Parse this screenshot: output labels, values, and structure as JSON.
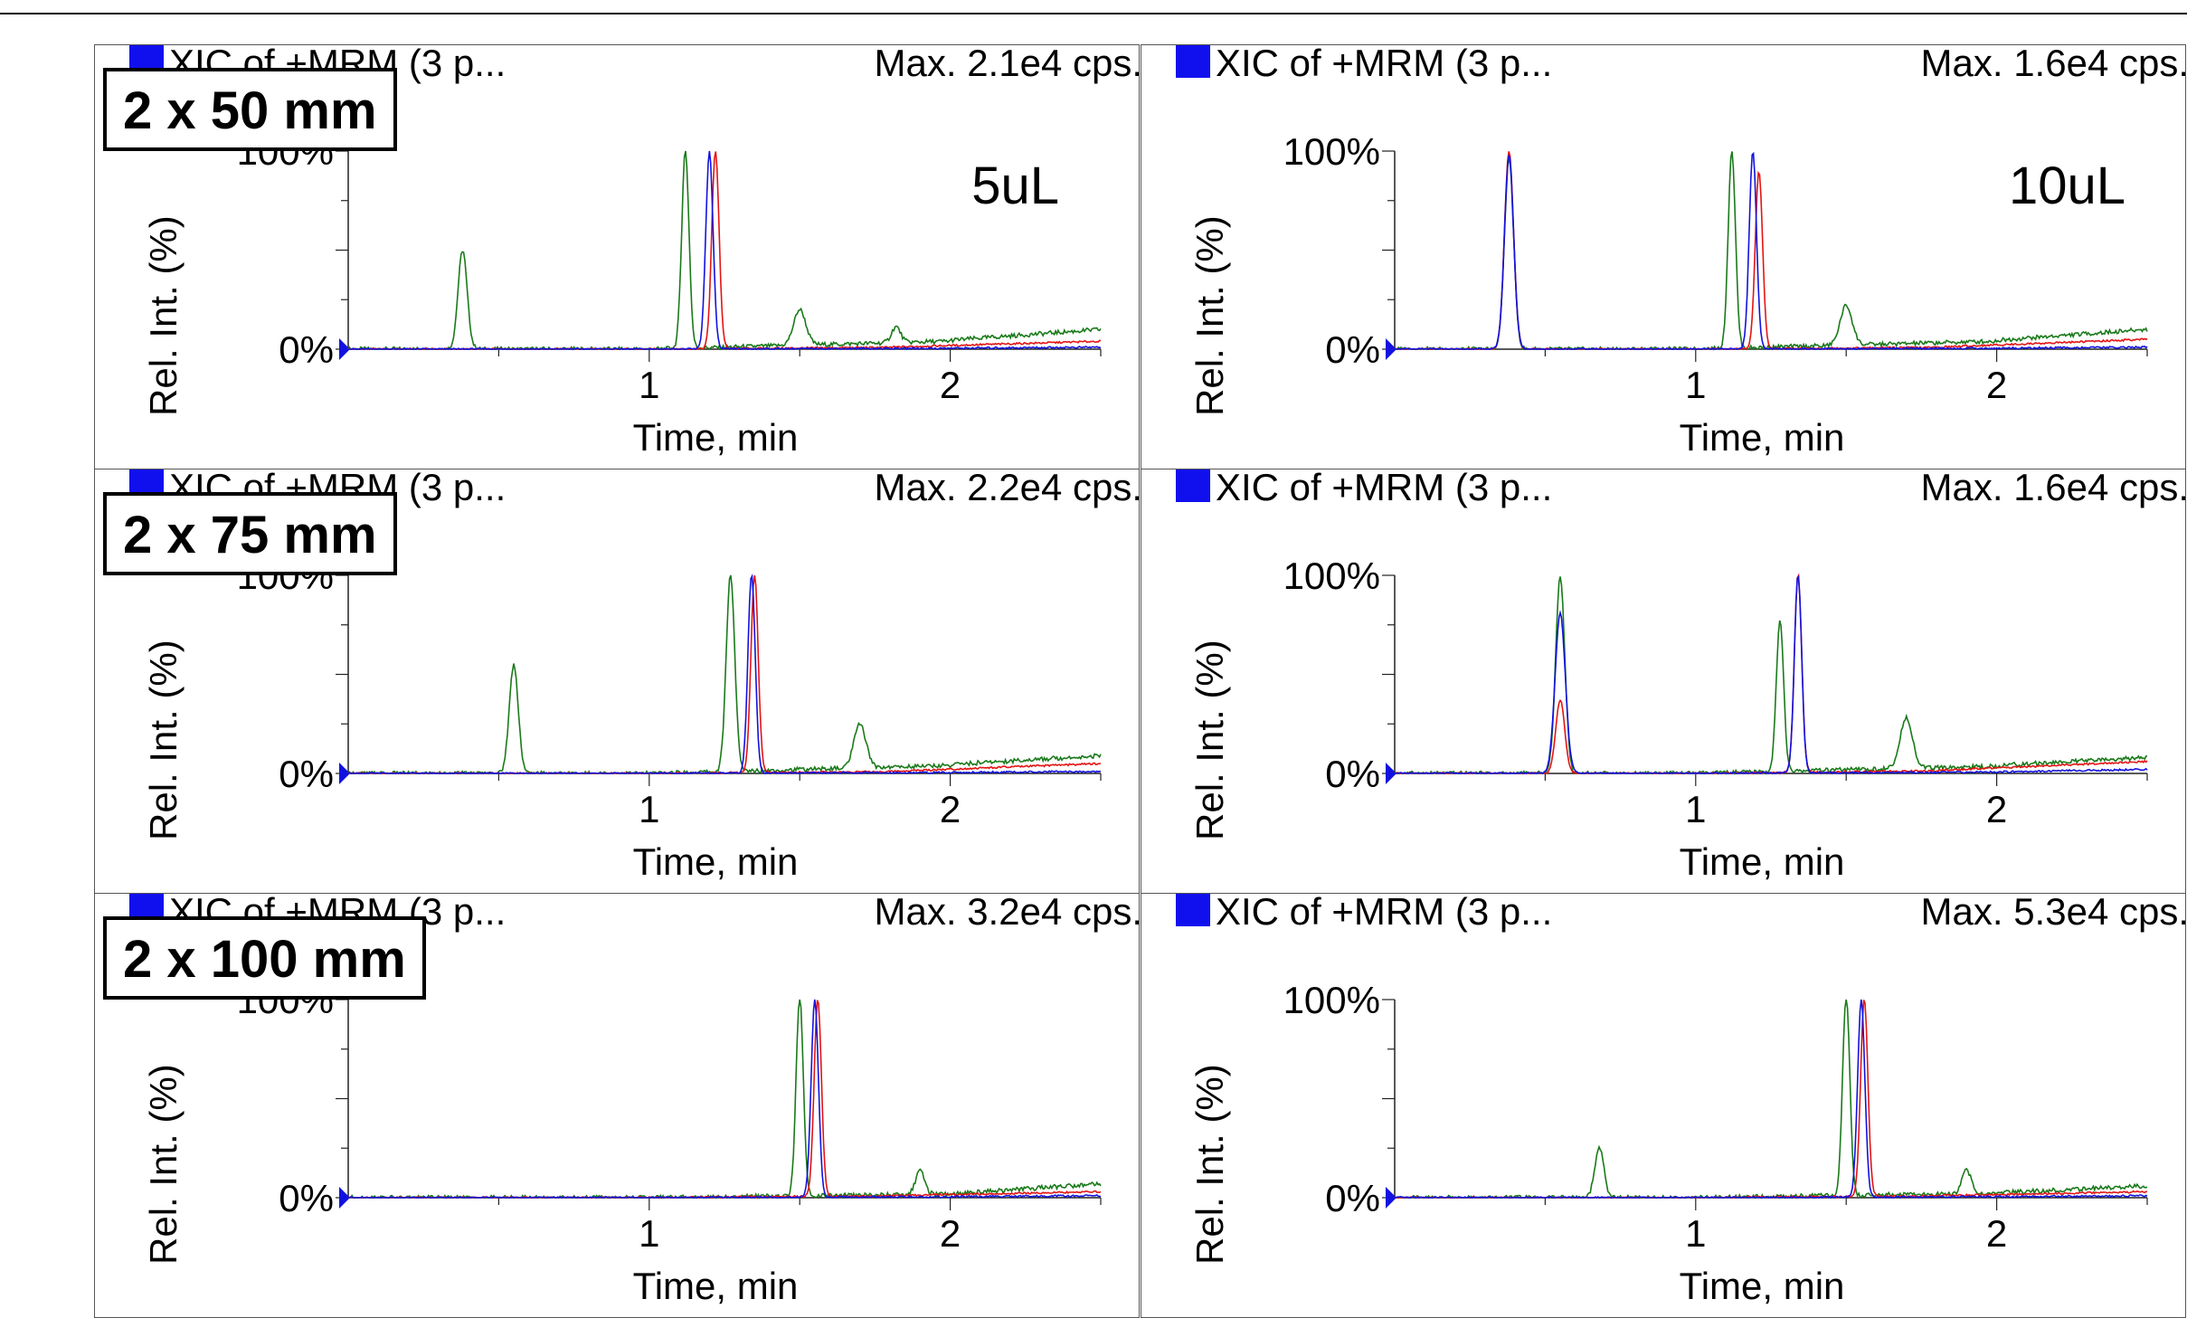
{
  "labels": {
    "col_title": "XIC of +MRM (3 p...",
    "y_axis_label": "Rel. Int. (%)",
    "pct_100": "100%",
    "pct_0": "0%",
    "x_axis_label": "Time, min"
  },
  "rows": [
    {
      "size_label": "2 x 50 mm"
    },
    {
      "size_label": "2 x 75 mm"
    },
    {
      "size_label": "2 x 100 mm"
    }
  ],
  "columns": [
    {
      "volume_label": "5uL"
    },
    {
      "volume_label": "10uL"
    }
  ],
  "colors": {
    "red": "#e51414",
    "blue": "#1212e0",
    "green": "#1a7a1a",
    "axis": "#222222",
    "frame": "#555555"
  },
  "chart_data": [
    {
      "type": "line",
      "row": 0,
      "col": 0,
      "title": "XIC of +MRM (3 p...",
      "max_label": "Max. 2.1e4 cps.",
      "volume": "5uL",
      "xlabel": "Time, min",
      "ylabel": "Rel. Int. (%)",
      "xlim": [
        0.0,
        2.5
      ],
      "ylim": [
        0,
        100
      ],
      "xticks": [
        1,
        2
      ],
      "peaks": {
        "green": [
          [
            0.38,
            50,
            0.015
          ],
          [
            1.12,
            100,
            0.012
          ],
          [
            1.5,
            18,
            0.02
          ],
          [
            1.82,
            8,
            0.015
          ]
        ],
        "blue": [
          [
            1.2,
            100,
            0.012
          ]
        ],
        "red": [
          [
            1.22,
            100,
            0.012
          ]
        ]
      },
      "tails": {
        "green": [
          0.0,
          2.0,
          4.5,
          10.0
        ],
        "red": [
          0.0,
          1.8,
          1.0,
          4.0
        ],
        "blue": [
          0.0,
          2.0,
          0.5,
          1.0
        ]
      }
    },
    {
      "type": "line",
      "row": 0,
      "col": 1,
      "title": "XIC of +MRM (3 p...",
      "max_label": "Max. 1.6e4 cps.",
      "volume": "10uL",
      "xlabel": "Time, min",
      "ylabel": "Rel. Int. (%)",
      "xlim": [
        0.0,
        2.5
      ],
      "ylim": [
        0,
        100
      ],
      "xticks": [
        1,
        2
      ],
      "peaks": {
        "green": [
          [
            0.38,
            96,
            0.015
          ],
          [
            1.12,
            100,
            0.012
          ],
          [
            1.5,
            20,
            0.02
          ]
        ],
        "blue": [
          [
            0.38,
            98,
            0.015
          ],
          [
            1.19,
            100,
            0.012
          ]
        ],
        "red": [
          [
            0.38,
            100,
            0.015
          ],
          [
            1.21,
            90,
            0.012
          ]
        ]
      },
      "tails": {
        "green": [
          0.0,
          2.0,
          4.5,
          10.0
        ],
        "red": [
          0.0,
          1.8,
          1.0,
          5.0
        ],
        "blue": [
          0.0,
          2.0,
          0.5,
          1.0
        ]
      }
    },
    {
      "type": "line",
      "row": 1,
      "col": 0,
      "title": "XIC of +MRM (3 p...",
      "max_label": "Max. 2.2e4 cps.",
      "volume": "",
      "xlabel": "Time, min",
      "ylabel": "Rel. Int. (%)",
      "xlim": [
        0.0,
        2.5
      ],
      "ylim": [
        0,
        100
      ],
      "xticks": [
        1,
        2
      ],
      "peaks": {
        "green": [
          [
            0.55,
            55,
            0.015
          ],
          [
            1.27,
            100,
            0.014
          ],
          [
            1.7,
            22,
            0.02
          ]
        ],
        "blue": [
          [
            1.34,
            100,
            0.012
          ]
        ],
        "red": [
          [
            1.35,
            100,
            0.012
          ]
        ]
      },
      "tails": {
        "green": [
          0.0,
          2.0,
          4.5,
          9.0
        ],
        "red": [
          0.0,
          1.8,
          1.0,
          5.0
        ],
        "blue": [
          0.0,
          2.0,
          0.5,
          1.0
        ]
      }
    },
    {
      "type": "line",
      "row": 1,
      "col": 1,
      "title": "XIC of +MRM (3 p...",
      "max_label": "Max. 1.6e4 cps.",
      "volume": "",
      "xlabel": "Time, min",
      "ylabel": "Rel. Int. (%)",
      "xlim": [
        0.0,
        2.5
      ],
      "ylim": [
        0,
        100
      ],
      "xticks": [
        1,
        2
      ],
      "peaks": {
        "green": [
          [
            0.55,
            100,
            0.015
          ],
          [
            1.28,
            76,
            0.012
          ],
          [
            1.7,
            26,
            0.02
          ]
        ],
        "blue": [
          [
            0.55,
            81,
            0.017
          ],
          [
            1.34,
            100,
            0.012
          ]
        ],
        "red": [
          [
            0.55,
            37,
            0.015
          ],
          [
            1.34,
            100,
            0.012
          ]
        ]
      },
      "tails": {
        "green": [
          0.0,
          2.0,
          4.0,
          8.0
        ],
        "red": [
          0.0,
          1.8,
          1.5,
          6.0
        ],
        "blue": [
          0.0,
          2.0,
          0.8,
          2.0
        ]
      }
    },
    {
      "type": "line",
      "row": 2,
      "col": 0,
      "title": "XIC of +MRM (3 p...",
      "max_label": "Max. 3.2e4 cps.",
      "volume": "",
      "xlabel": "Time, min",
      "ylabel": "Rel. Int. (%)",
      "xlim": [
        0.0,
        2.5
      ],
      "ylim": [
        0,
        100
      ],
      "xticks": [
        1,
        2
      ],
      "peaks": {
        "green": [
          [
            1.5,
            100,
            0.012
          ],
          [
            1.9,
            12,
            0.015
          ]
        ],
        "blue": [
          [
            1.55,
            100,
            0.012
          ]
        ],
        "red": [
          [
            1.56,
            100,
            0.012
          ]
        ]
      },
      "tails": {
        "green": [
          0.0,
          2.0,
          2.0,
          7.0
        ],
        "red": [
          0.0,
          1.8,
          1.0,
          3.0
        ],
        "blue": [
          0.0,
          2.0,
          0.5,
          1.0
        ]
      }
    },
    {
      "type": "line",
      "row": 2,
      "col": 1,
      "title": "XIC of +MRM (3 p...",
      "max_label": "Max. 5.3e4 cps.",
      "volume": "",
      "xlabel": "Time, min",
      "ylabel": "Rel. Int. (%)",
      "xlim": [
        0.0,
        2.5
      ],
      "ylim": [
        0,
        100
      ],
      "xticks": [
        1,
        2
      ],
      "peaks": {
        "green": [
          [
            0.68,
            25,
            0.015
          ],
          [
            1.5,
            100,
            0.012
          ],
          [
            1.9,
            12,
            0.015
          ]
        ],
        "blue": [
          [
            1.55,
            100,
            0.012
          ]
        ],
        "red": [
          [
            1.56,
            100,
            0.012
          ]
        ]
      },
      "tails": {
        "green": [
          0.0,
          2.0,
          2.5,
          6.0
        ],
        "red": [
          0.0,
          1.8,
          1.0,
          3.0
        ],
        "blue": [
          0.0,
          2.0,
          0.5,
          1.0
        ]
      }
    }
  ]
}
